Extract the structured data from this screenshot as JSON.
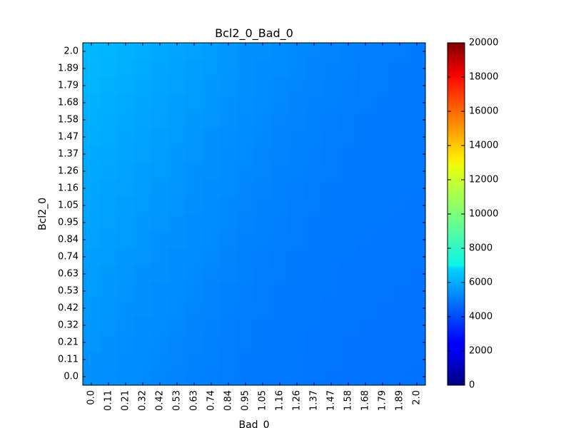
{
  "chart_data": {
    "type": "heatmap",
    "title": "Bcl2_0_Bad_0",
    "xlabel": "Bad_0",
    "ylabel": "Bcl2_0",
    "x_ticks": [
      "0.0",
      "0.11",
      "0.21",
      "0.32",
      "0.42",
      "0.53",
      "0.63",
      "0.74",
      "0.84",
      "0.95",
      "1.05",
      "1.16",
      "1.26",
      "1.37",
      "1.47",
      "1.58",
      "1.68",
      "1.79",
      "1.89",
      "2.0"
    ],
    "y_ticks": [
      "0.0",
      "0.11",
      "0.21",
      "0.32",
      "0.42",
      "0.53",
      "0.63",
      "0.74",
      "0.84",
      "0.95",
      "1.05",
      "1.16",
      "1.26",
      "1.37",
      "1.47",
      "1.58",
      "1.68",
      "1.79",
      "1.89",
      "2.0"
    ],
    "value_range": [
      0,
      20000
    ],
    "colorbar_ticks": [
      "0",
      "2000",
      "4000",
      "6000",
      "8000",
      "10000",
      "12000",
      "14000",
      "16000",
      "18000",
      "20000"
    ],
    "colormap": "jet",
    "grid": false,
    "values": [
      [
        5350,
        5300,
        5250,
        5200,
        5150,
        5100,
        5050,
        5000,
        4950,
        4900,
        4870,
        4850,
        4830,
        4800,
        4780,
        4760,
        4750,
        4740,
        4730,
        4720
      ],
      [
        5380,
        5320,
        5270,
        5220,
        5170,
        5120,
        5070,
        5020,
        4970,
        4920,
        4890,
        4860,
        4840,
        4810,
        4790,
        4770,
        4760,
        4750,
        4740,
        4730
      ],
      [
        5420,
        5360,
        5300,
        5250,
        5200,
        5140,
        5090,
        5040,
        4990,
        4940,
        4910,
        4880,
        4850,
        4820,
        4800,
        4780,
        4770,
        4760,
        4750,
        4740
      ],
      [
        5460,
        5400,
        5340,
        5280,
        5220,
        5170,
        5110,
        5060,
        5010,
        4960,
        4920,
        4890,
        4860,
        4830,
        4810,
        4790,
        4780,
        4770,
        4760,
        4750
      ],
      [
        5500,
        5440,
        5380,
        5320,
        5260,
        5200,
        5140,
        5080,
        5030,
        4980,
        4940,
        4900,
        4870,
        4840,
        4820,
        4800,
        4790,
        4780,
        4770,
        4760
      ],
      [
        5540,
        5480,
        5410,
        5350,
        5290,
        5230,
        5170,
        5110,
        5050,
        5000,
        4960,
        4920,
        4880,
        4850,
        4830,
        4810,
        4800,
        4790,
        4780,
        4770
      ],
      [
        5580,
        5520,
        5450,
        5380,
        5320,
        5260,
        5200,
        5140,
        5080,
        5020,
        4980,
        4940,
        4900,
        4870,
        4840,
        4820,
        4810,
        4800,
        4790,
        4780
      ],
      [
        5620,
        5560,
        5490,
        5420,
        5350,
        5290,
        5230,
        5170,
        5110,
        5050,
        5000,
        4960,
        4920,
        4880,
        4850,
        4830,
        4820,
        4810,
        4800,
        4790
      ],
      [
        5660,
        5600,
        5530,
        5460,
        5390,
        5320,
        5260,
        5200,
        5130,
        5070,
        5020,
        4980,
        4940,
        4900,
        4870,
        4850,
        4830,
        4820,
        4810,
        4800
      ],
      [
        5700,
        5640,
        5570,
        5500,
        5430,
        5360,
        5290,
        5220,
        5160,
        5100,
        5050,
        5000,
        4960,
        4920,
        4890,
        4860,
        4840,
        4830,
        4820,
        4810
      ],
      [
        5740,
        5680,
        5610,
        5540,
        5470,
        5400,
        5320,
        5250,
        5190,
        5120,
        5070,
        5020,
        4980,
        4940,
        4900,
        4870,
        4850,
        4840,
        4830,
        4820
      ],
      [
        5780,
        5720,
        5650,
        5580,
        5500,
        5430,
        5360,
        5290,
        5220,
        5150,
        5090,
        5040,
        5000,
        4960,
        4920,
        4890,
        4870,
        4850,
        4840,
        4830
      ],
      [
        5820,
        5760,
        5690,
        5620,
        5540,
        5460,
        5390,
        5320,
        5250,
        5180,
        5120,
        5070,
        5020,
        4980,
        4940,
        4910,
        4880,
        4860,
        4850,
        4840
      ],
      [
        5860,
        5800,
        5730,
        5660,
        5580,
        5500,
        5420,
        5350,
        5280,
        5210,
        5150,
        5090,
        5040,
        5000,
        4960,
        4920,
        4890,
        4870,
        4860,
        4850
      ],
      [
        5900,
        5840,
        5770,
        5700,
        5620,
        5540,
        5460,
        5380,
        5310,
        5240,
        5170,
        5110,
        5060,
        5020,
        4980,
        4940,
        4910,
        4880,
        4870,
        4860
      ],
      [
        5940,
        5880,
        5810,
        5740,
        5660,
        5580,
        5500,
        5420,
        5340,
        5270,
        5200,
        5140,
        5080,
        5040,
        5000,
        4960,
        4920,
        4900,
        4880,
        4870
      ],
      [
        5980,
        5920,
        5850,
        5780,
        5700,
        5620,
        5540,
        5460,
        5380,
        5300,
        5230,
        5160,
        5100,
        5060,
        5020,
        4980,
        4940,
        4910,
        4890,
        4880
      ],
      [
        6020,
        5960,
        5890,
        5820,
        5740,
        5660,
        5580,
        5500,
        5410,
        5330,
        5260,
        5190,
        5130,
        5080,
        5040,
        5000,
        4960,
        4930,
        4900,
        4890
      ],
      [
        6060,
        6000,
        5930,
        5860,
        5780,
        5700,
        5620,
        5530,
        5440,
        5360,
        5290,
        5220,
        5160,
        5100,
        5060,
        5020,
        4980,
        4950,
        4920,
        4900
      ],
      [
        6100,
        6040,
        5970,
        5900,
        5820,
        5740,
        5660,
        5570,
        5480,
        5390,
        5320,
        5250,
        5190,
        5130,
        5080,
        5040,
        5000,
        4970,
        4940,
        4920
      ]
    ]
  }
}
